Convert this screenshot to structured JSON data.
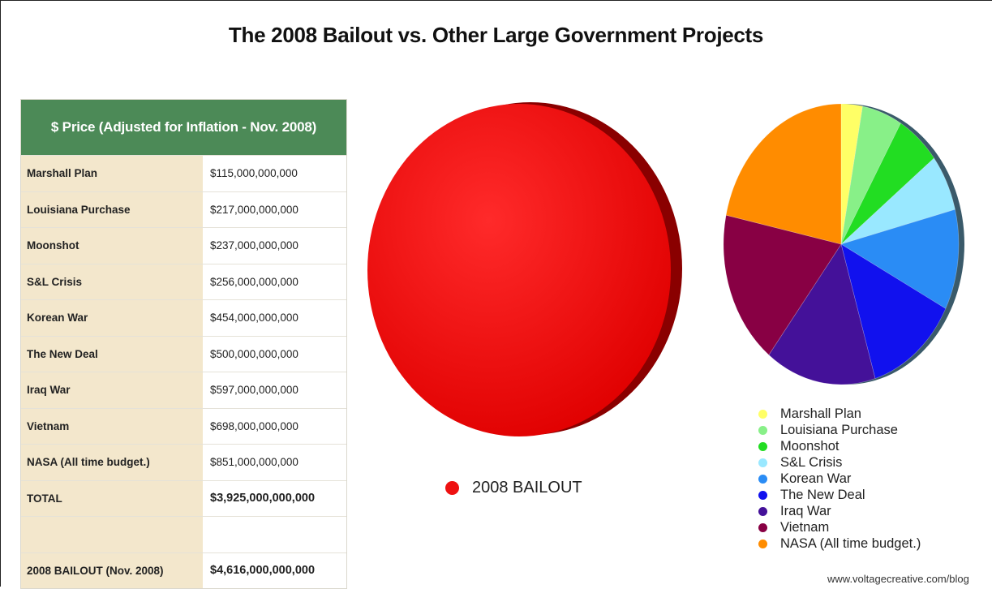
{
  "title": "The 2008 Bailout vs. Other Large Government Projects",
  "table": {
    "header": "$ Price (Adjusted for Inflation - Nov. 2008)",
    "rows": [
      {
        "name": "Marshall Plan",
        "value": "$115,000,000,000"
      },
      {
        "name": "Louisiana Purchase",
        "value": "$217,000,000,000"
      },
      {
        "name": "Moonshot",
        "value": "$237,000,000,000"
      },
      {
        "name": "S&L Crisis",
        "value": "$256,000,000,000"
      },
      {
        "name": "Korean War",
        "value": "$454,000,000,000"
      },
      {
        "name": "The New Deal",
        "value": "$500,000,000,000"
      },
      {
        "name": "Iraq War",
        "value": "$597,000,000,000"
      },
      {
        "name": "Vietnam",
        "value": "$698,000,000,000"
      },
      {
        "name": "NASA (All time budget.)",
        "value": "$851,000,000,000"
      },
      {
        "name": "TOTAL",
        "value": "$3,925,000,000,000"
      },
      {
        "name": "",
        "value": ""
      },
      {
        "name": "2008 BAILOUT (Nov. 2008)",
        "value": "$4,616,000,000,000"
      }
    ]
  },
  "chart_data": [
    {
      "type": "pie",
      "series": [
        {
          "name": "2008 BAILOUT",
          "values": [
            4616000000000
          ]
        }
      ],
      "categories": [
        "2008 BAILOUT"
      ],
      "values": [
        4616000000000
      ],
      "colors": [
        "#ee1111"
      ],
      "legend": "bottom"
    },
    {
      "type": "pie",
      "categories": [
        "Marshall Plan",
        "Louisiana Purchase",
        "Moonshot",
        "S&L Crisis",
        "Korean War",
        "The New Deal",
        "Iraq War",
        "Vietnam",
        "NASA (All time budget.)"
      ],
      "values": [
        115000000000,
        217000000000,
        237000000000,
        256000000000,
        454000000000,
        500000000000,
        597000000000,
        698000000000,
        851000000000
      ],
      "colors": [
        "#ffff66",
        "#88f088",
        "#22dd22",
        "#99e8ff",
        "#2a8cf5",
        "#1111ee",
        "#441199",
        "#880044",
        "#ff8c00"
      ],
      "legend": "bottom"
    }
  ],
  "big_legend_label": "2008 BAILOUT",
  "credit": "www.voltagecreative.com/blog"
}
